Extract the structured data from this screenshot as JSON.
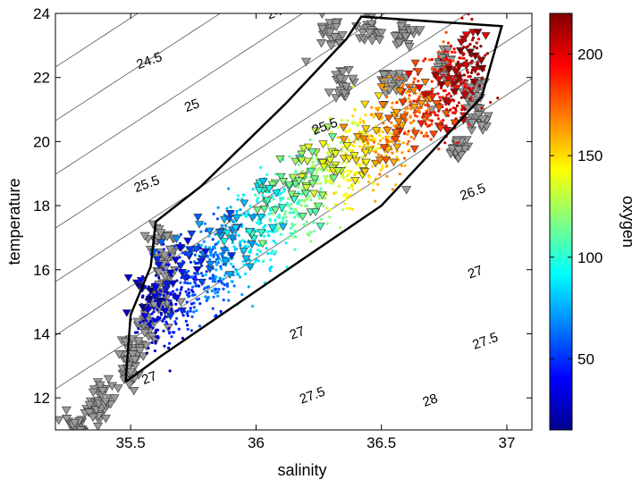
{
  "chart_data": {
    "type": "scatter",
    "title": "",
    "xlabel": "salinity",
    "ylabel": "temperature",
    "colorbar_label": "oxygen",
    "xlim": [
      35.2,
      37.1
    ],
    "ylim": [
      11,
      24
    ],
    "xticks": [
      35.5,
      36,
      36.5,
      37
    ],
    "xtick_labels": [
      "35.5",
      "36",
      "36.5",
      "37"
    ],
    "yticks": [
      12,
      14,
      16,
      18,
      20,
      22,
      24
    ],
    "ytick_labels": [
      "12",
      "14",
      "16",
      "18",
      "20",
      "22",
      "24"
    ],
    "colorbar": {
      "range": [
        15,
        220
      ],
      "ticks": [
        50,
        100,
        150,
        200
      ],
      "tick_labels": [
        "50",
        "100",
        "150",
        "200"
      ],
      "colormap": "jet"
    },
    "density_contours": [
      {
        "sigma": 24.5,
        "labels": [
          "24.5",
          "24.5"
        ],
        "label_pos": [
          [
            36.1,
            23.95
          ],
          [
            35.58,
            22.4
          ]
        ]
      },
      {
        "sigma": 25.0,
        "labels": [
          "25"
        ],
        "label_pos": [
          [
            35.75,
            21.0
          ]
        ]
      },
      {
        "sigma": 25.5,
        "labels": [
          "25.5",
          "25.5"
        ],
        "label_pos": [
          [
            35.57,
            18.55
          ],
          [
            36.28,
            20.35
          ]
        ]
      },
      {
        "sigma": 26.0,
        "labels": [],
        "label_pos": []
      },
      {
        "sigma": 26.5,
        "labels": [
          "26.5"
        ],
        "label_pos": [
          [
            36.87,
            18.3
          ]
        ]
      },
      {
        "sigma": 27.0,
        "labels": [
          "27",
          "27",
          "27"
        ],
        "label_pos": [
          [
            35.58,
            12.5
          ],
          [
            36.17,
            13.9
          ],
          [
            36.88,
            15.8
          ]
        ]
      },
      {
        "sigma": 27.5,
        "labels": [
          "27.5",
          "27.5"
        ],
        "label_pos": [
          [
            36.23,
            11.95
          ],
          [
            36.92,
            13.65
          ]
        ]
      },
      {
        "sigma": 28.0,
        "labels": [
          "28"
        ],
        "label_pos": [
          [
            36.7,
            11.8
          ]
        ]
      }
    ],
    "envelope": {
      "color": "#000000",
      "points": [
        [
          35.48,
          12.5
        ],
        [
          35.5,
          14.6
        ],
        [
          35.58,
          16.1
        ],
        [
          35.6,
          17.5
        ],
        [
          35.78,
          18.6
        ],
        [
          36.12,
          21.2
        ],
        [
          36.36,
          23.2
        ],
        [
          36.42,
          23.9
        ],
        [
          36.98,
          23.6
        ],
        [
          36.9,
          21.4
        ],
        [
          36.72,
          19.85
        ],
        [
          36.5,
          18.0
        ],
        [
          36.05,
          15.6
        ],
        [
          35.62,
          13.3
        ],
        [
          35.48,
          12.5
        ]
      ]
    },
    "series": [
      {
        "kind": "triangle-markers-gray",
        "color": "#9a9a9a",
        "x": [
          35.3,
          35.35,
          35.4,
          35.45,
          35.5,
          35.55,
          35.6,
          35.65,
          35.7,
          36.2,
          36.3,
          36.4,
          36.5,
          36.6,
          36.7,
          36.8,
          36.9,
          36.6
        ],
        "y": [
          11.0,
          11.4,
          11.9,
          12.3,
          12.8,
          13.3,
          13.8,
          14.2,
          15.0,
          22.5,
          23.0,
          23.6,
          23.4,
          22.0,
          21.0,
          20.0,
          20.5,
          18.5
        ]
      },
      {
        "kind": "colored-points",
        "x_range": [
          35.5,
          36.95
        ],
        "y_range": [
          12.5,
          24.0
        ],
        "value_range": [
          20,
          220
        ]
      },
      {
        "kind": "colored-triangles",
        "x_range": [
          35.5,
          37.0
        ],
        "y_range": [
          14.8,
          22.5
        ],
        "value_range": [
          20,
          220
        ]
      }
    ]
  }
}
